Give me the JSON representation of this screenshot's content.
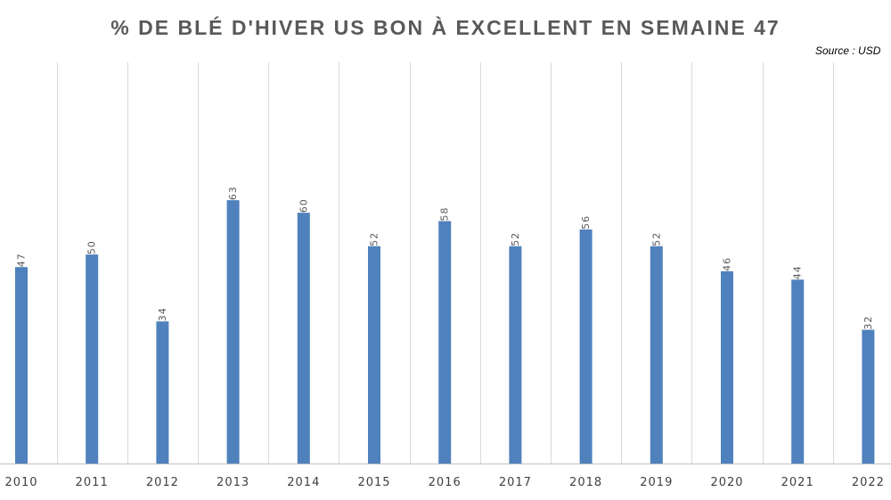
{
  "chart_data": {
    "type": "bar",
    "title": "% DE BLÉ D'HIVER US BON À EXCELLENT EN SEMAINE 47",
    "source": "Source : USD",
    "categories": [
      "2010",
      "2011",
      "2012",
      "2013",
      "2014",
      "2015",
      "2016",
      "2017",
      "2018",
      "2019",
      "2020",
      "2021",
      "2022"
    ],
    "values": [
      47,
      50,
      34,
      63,
      60,
      52,
      58,
      52,
      56,
      52,
      46,
      44,
      32
    ],
    "ylim": [
      0,
      96
    ],
    "xlabel": "",
    "ylabel": "",
    "grid": "vertical",
    "legend": "none",
    "bar_color": "#4f81bd",
    "grid_color": "#d9d9d9",
    "axis_color": "#bfbfbf"
  }
}
